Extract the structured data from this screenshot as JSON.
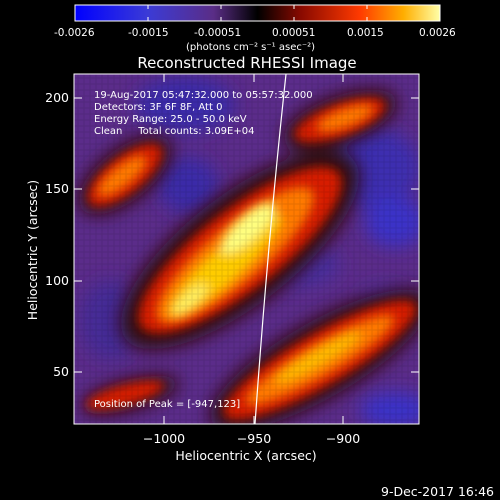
{
  "colorbar": {
    "ticks": [
      "-0.0026",
      "-0.0015",
      "-0.00051",
      "0.00051",
      "0.0015",
      "0.0026"
    ],
    "units": "(photons cm⁻² s⁻¹ asec⁻²)"
  },
  "title": "Reconstructed RHESSI Image",
  "info": {
    "time_range": "19-Aug-2017 05:47:32.000 to 05:57:32.000",
    "detectors": "Detectors: 3F 6F 8F, Att 0",
    "energy_range": "Energy Range: 25.0 - 50.0 keV",
    "clean_counts": "Clean     Total counts: 3.09E+04",
    "peak": "Position of Peak = [-947,123]"
  },
  "axes": {
    "xlabel": "Heliocentric X (arcsec)",
    "ylabel": "Heliocentric Y (arcsec)",
    "x_ticks": [
      "−1000",
      "−950",
      "−900"
    ],
    "y_ticks": [
      "200",
      "150",
      "100",
      "50"
    ]
  },
  "timestamp": "9-Dec-2017 16:46",
  "colors": {
    "background": "#000000",
    "text": "#ffffff",
    "colorbar_stops": [
      "#0000ff",
      "#4444cc",
      "#66338a",
      "#000000",
      "#8b0000",
      "#ff3300",
      "#ffaa00",
      "#ffff99"
    ]
  }
}
